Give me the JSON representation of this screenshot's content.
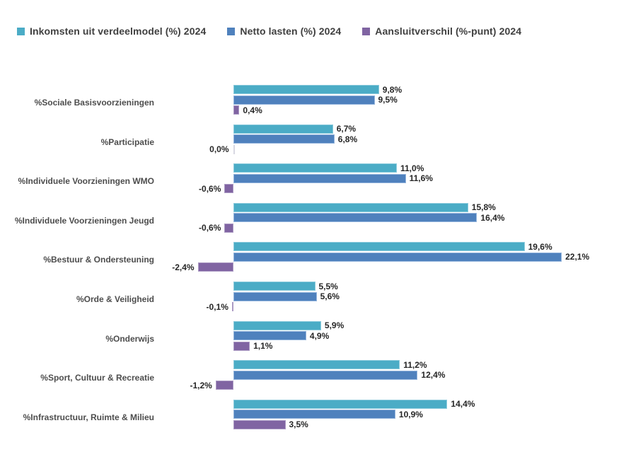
{
  "legend": {
    "items": [
      {
        "label": "Inkomsten uit verdeelmodel (%) 2024",
        "color": "#4BACC6"
      },
      {
        "label": "Netto lasten (%) 2024",
        "color": "#4F81BD"
      },
      {
        "label": "Aansluitverschil (%-punt) 2024",
        "color": "#8064A2"
      }
    ]
  },
  "chart_data": {
    "type": "bar",
    "orientation": "horizontal",
    "title": "",
    "xlabel": "",
    "ylabel": "",
    "xlim": [
      -3,
      24
    ],
    "grid": false,
    "legend_position": "top",
    "value_format": "comma-decimal-percent",
    "categories": [
      "%Sociale Basisvoorzieningen",
      "%Participatie",
      "%Individuele Voorzieningen WMO",
      "%Individuele Voorzieningen Jeugd",
      "%Bestuur & Ondersteuning",
      "%Orde & Veiligheid",
      "%Onderwijs",
      "%Sport, Cultuur & Recreatie",
      "%Infrastructuur, Ruimte & Milieu"
    ],
    "series": [
      {
        "name": "Inkomsten uit verdeelmodel (%) 2024",
        "color": "#4BACC6",
        "values": [
          9.8,
          6.7,
          11.0,
          15.8,
          19.6,
          5.5,
          5.9,
          11.2,
          14.4
        ],
        "value_labels": [
          "9,8%",
          "6,7%",
          "11,0%",
          "15,8%",
          "19,6%",
          "5,5%",
          "5,9%",
          "11,2%",
          "14,4%"
        ]
      },
      {
        "name": "Netto lasten (%) 2024",
        "color": "#4F81BD",
        "values": [
          9.5,
          6.8,
          11.6,
          16.4,
          22.1,
          5.6,
          4.9,
          12.4,
          10.9
        ],
        "value_labels": [
          "9,5%",
          "6,8%",
          "11,6%",
          "16,4%",
          "22,1%",
          "5,6%",
          "4,9%",
          "12,4%",
          "10,9%"
        ]
      },
      {
        "name": "Aansluitverschil (%-punt) 2024",
        "color": "#8064A2",
        "values": [
          0.4,
          0.0,
          -0.6,
          -0.6,
          -2.4,
          -0.1,
          1.1,
          -1.2,
          3.5
        ],
        "value_labels": [
          "0,4%",
          "0,0%",
          "-0,6%",
          "-0,6%",
          "-2,4%",
          "-0,1%",
          "1,1%",
          "-1,2%",
          "3,5%"
        ]
      }
    ]
  }
}
